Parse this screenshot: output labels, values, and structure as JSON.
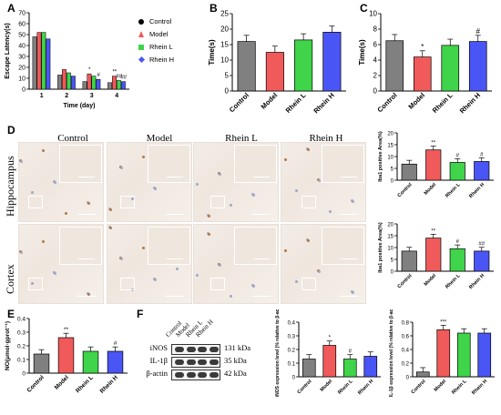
{
  "panel_labels": {
    "A": "A",
    "B": "B",
    "C": "C",
    "D": "D",
    "E": "E",
    "F": "F"
  },
  "colors": {
    "Control": "#808080",
    "Model": "#f15a5a",
    "Rhein L": "#3fd44a",
    "Rhein H": "#4a55f5"
  },
  "legend_a": [
    {
      "label": "Control",
      "marker": "circle",
      "color": "#000000"
    },
    {
      "label": "Model",
      "marker": "triangle",
      "color": "#f15a5a"
    },
    {
      "label": "Rhein L",
      "marker": "square",
      "color": "#3fd44a"
    },
    {
      "label": "Rhein H",
      "marker": "diamond",
      "color": "#4a55f5"
    }
  ],
  "micrograph": {
    "columns": [
      "Control",
      "Model",
      "Rhein L",
      "Rhein H"
    ],
    "rows": [
      "Hippocampus",
      "Cortex"
    ]
  },
  "blot": {
    "lanes": [
      "Control",
      "Model",
      "Rhein L",
      "Rhein H"
    ],
    "rows": [
      {
        "name": "iNOS",
        "size": "131 kDa"
      },
      {
        "name": "IL-1β",
        "size": "35 kDa"
      },
      {
        "name": "β-actin",
        "size": "42 kDa"
      }
    ]
  },
  "chart_data": [
    {
      "id": "A",
      "type": "bar",
      "xlabel": "Time (day)",
      "ylabel": "Escape Latency(s)",
      "categories": [
        "1",
        "2",
        "3",
        "4"
      ],
      "ylim": [
        0,
        70
      ],
      "yticks": [
        0,
        10,
        20,
        30,
        40,
        50,
        60,
        70
      ],
      "series": [
        {
          "name": "Control",
          "values": [
            48,
            13,
            7,
            6
          ]
        },
        {
          "name": "Model",
          "values": [
            52,
            18,
            14,
            12
          ]
        },
        {
          "name": "Rhein L",
          "values": [
            52,
            15,
            12,
            8
          ]
        },
        {
          "name": "Rhein H",
          "values": [
            46,
            12,
            9,
            7
          ]
        }
      ],
      "annotations": [
        {
          "category": "3",
          "series": "Model",
          "text": "*"
        },
        {
          "category": "3",
          "series": "Rhein H",
          "text": "#"
        },
        {
          "category": "4",
          "series": "Model",
          "text": "**"
        },
        {
          "category": "4",
          "series": "Rhein L",
          "text": "##"
        },
        {
          "category": "4",
          "series": "Rhein H",
          "text": "##"
        }
      ]
    },
    {
      "id": "B",
      "type": "bar",
      "ylabel": "Time(s)",
      "categories": [
        "Control",
        "Model",
        "Rhein L",
        "Rhein H"
      ],
      "values": [
        16,
        12.5,
        16.5,
        19
      ],
      "ylim": [
        0,
        25
      ],
      "yticks": [
        0,
        5,
        10,
        15,
        20,
        25
      ],
      "annotations": []
    },
    {
      "id": "C",
      "type": "bar",
      "ylabel": "Time(s)",
      "categories": [
        "Control",
        "Model",
        "Rhein L",
        "Rhein H"
      ],
      "values": [
        6.5,
        4.4,
        5.9,
        6.4
      ],
      "ylim": [
        0,
        10
      ],
      "yticks": [
        0,
        2,
        4,
        6,
        8,
        10
      ],
      "annotations": [
        {
          "category": "Model",
          "text": "*"
        },
        {
          "category": "Rhein H",
          "text": "#"
        }
      ]
    },
    {
      "id": "D1",
      "type": "bar",
      "ylabel": "Iba1 positive Area(%)",
      "categories": [
        "Control",
        "Model",
        "Rhein L",
        "Rhein H"
      ],
      "values": [
        6.8,
        12.8,
        7.5,
        7.9
      ],
      "ylim": [
        0,
        20
      ],
      "yticks": [
        0,
        5,
        10,
        15,
        20
      ],
      "annotations": [
        {
          "category": "Model",
          "text": "**"
        },
        {
          "category": "Rhein L",
          "text": "#"
        },
        {
          "category": "Rhein H",
          "text": "#"
        }
      ]
    },
    {
      "id": "D2",
      "type": "bar",
      "ylabel": "Iba1 positive Area(%)",
      "categories": [
        "Control",
        "Model",
        "Rhein L",
        "Rhein H"
      ],
      "values": [
        8.5,
        14,
        9.5,
        8.5
      ],
      "ylim": [
        0,
        20
      ],
      "yticks": [
        0,
        5,
        10,
        15,
        20
      ],
      "annotations": [
        {
          "category": "Model",
          "text": "**"
        },
        {
          "category": "Rhein L",
          "text": "#"
        },
        {
          "category": "Rhein H",
          "text": "##"
        }
      ]
    },
    {
      "id": "E",
      "type": "bar",
      "ylabel": "NO(μmol·gprot⁻¹)",
      "categories": [
        "Control",
        "Model",
        "Rhein L",
        "Rhein H"
      ],
      "values": [
        0.14,
        0.26,
        0.16,
        0.16
      ],
      "ylim": [
        0,
        0.4
      ],
      "yticks": [
        0,
        0.1,
        0.2,
        0.3,
        0.4
      ],
      "annotations": [
        {
          "category": "Model",
          "text": "**"
        },
        {
          "category": "Rhein H",
          "text": "#"
        }
      ]
    },
    {
      "id": "F1",
      "type": "bar",
      "ylabel": "iNOS expression level (% relative to β-actin)",
      "categories": [
        "Control",
        "Model",
        "Rhein L",
        "Rhein H"
      ],
      "values": [
        0.13,
        0.23,
        0.13,
        0.15
      ],
      "ylim": [
        0,
        0.4
      ],
      "yticks": [
        0,
        0.1,
        0.2,
        0.3,
        0.4
      ],
      "annotations": [
        {
          "category": "Model",
          "text": "*"
        },
        {
          "category": "Rhein L",
          "text": "#"
        }
      ]
    },
    {
      "id": "F2",
      "type": "bar",
      "ylabel": "IL-1β expression level (% relative to β-actin)",
      "categories": [
        "Control",
        "Model",
        "Rhein L",
        "Rhein H"
      ],
      "values": [
        0.07,
        0.69,
        0.64,
        0.64
      ],
      "ylim": [
        0,
        0.8
      ],
      "yticks": [
        0,
        0.2,
        0.4,
        0.6,
        0.8
      ],
      "annotations": [
        {
          "category": "Model",
          "text": "***"
        }
      ]
    }
  ]
}
